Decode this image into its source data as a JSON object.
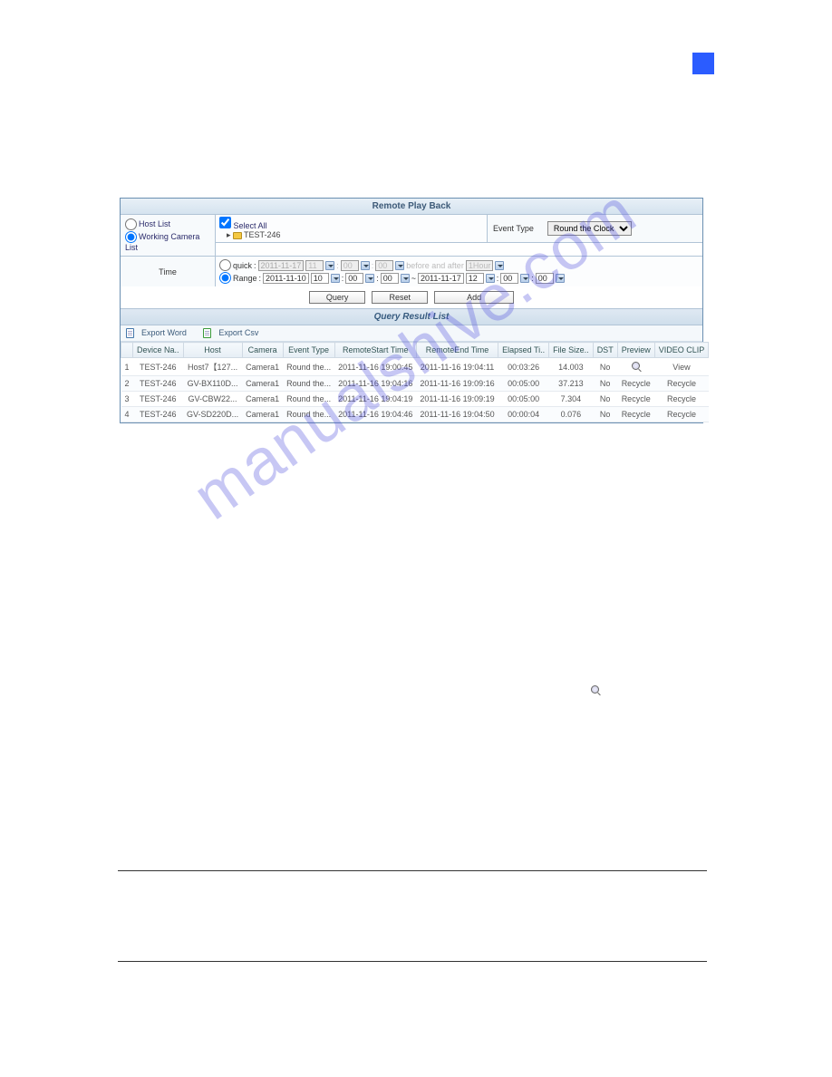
{
  "title": "Remote Play Back",
  "mode": {
    "host_list": "Host List",
    "working_camera_list": "Working Camera List",
    "selected": "working"
  },
  "tree": {
    "select_all_label": "Select All",
    "nodes": [
      "TEST-246"
    ]
  },
  "event_type": {
    "label": "Event Type",
    "value": "Round the Clock"
  },
  "time": {
    "label": "Time",
    "quick_label": "quick",
    "quick_date": "2011-11-17",
    "quick_hh": "11",
    "quick_mm": "00",
    "quick_ss": "00",
    "before_after_label": "before and after",
    "before_after_value": "1Hour",
    "range_label": "Range",
    "range_start_date": "2011-11-10",
    "range_start_hh": "10",
    "range_start_mm": "00",
    "range_start_ss": "00",
    "range_end_date": "2011-11-17",
    "range_end_hh": "12",
    "range_end_mm": "00",
    "range_end_ss": "00"
  },
  "buttons": {
    "query": "Query",
    "reset": "Reset",
    "add": "Add"
  },
  "result_title": "Query Result List",
  "export": {
    "word": "Export Word",
    "csv": "Export Csv"
  },
  "columns": [
    "",
    "Device Na..",
    "Host",
    "Camera",
    "Event Type",
    "RemoteStart Time",
    "RemoteEnd Time",
    "Elapsed Ti..",
    "File Size..",
    "DST",
    "Preview",
    "VIDEO CLIP"
  ],
  "rows": [
    {
      "n": "1",
      "device": "TEST-246",
      "host": "Host7【127...",
      "camera": "Camera1",
      "event": "Round the...",
      "start": "2011-11-16 19:00:45",
      "end": "2011-11-16 19:04:11",
      "elapsed": "00:03:26",
      "size": "14.003",
      "dst": "No",
      "preview": "icon",
      "clip": "View"
    },
    {
      "n": "2",
      "device": "TEST-246",
      "host": "GV-BX110D...",
      "camera": "Camera1",
      "event": "Round the...",
      "start": "2011-11-16 19:04:16",
      "end": "2011-11-16 19:09:16",
      "elapsed": "00:05:00",
      "size": "37.213",
      "dst": "No",
      "preview": "Recycle",
      "clip": "Recycle"
    },
    {
      "n": "3",
      "device": "TEST-246",
      "host": "GV-CBW22...",
      "camera": "Camera1",
      "event": "Round the...",
      "start": "2011-11-16 19:04:19",
      "end": "2011-11-16 19:09:19",
      "elapsed": "00:05:00",
      "size": "7.304",
      "dst": "No",
      "preview": "Recycle",
      "clip": "Recycle"
    },
    {
      "n": "4",
      "device": "TEST-246",
      "host": "GV-SD220D...",
      "camera": "Camera1",
      "event": "Round the...",
      "start": "2011-11-16 19:04:46",
      "end": "2011-11-16 19:04:50",
      "elapsed": "00:00:04",
      "size": "0.076",
      "dst": "No",
      "preview": "Recycle",
      "clip": "Recycle"
    }
  ],
  "colors": {
    "accent_blue": "#2b5cff",
    "header_grad_top": "#e8f0f7",
    "header_grad_bottom": "#d5e3ef",
    "border": "#b1c4d6",
    "link": "#2a45c4",
    "watermark": "rgba(80,80,220,0.32)"
  },
  "watermark_text": "manualshive.com"
}
